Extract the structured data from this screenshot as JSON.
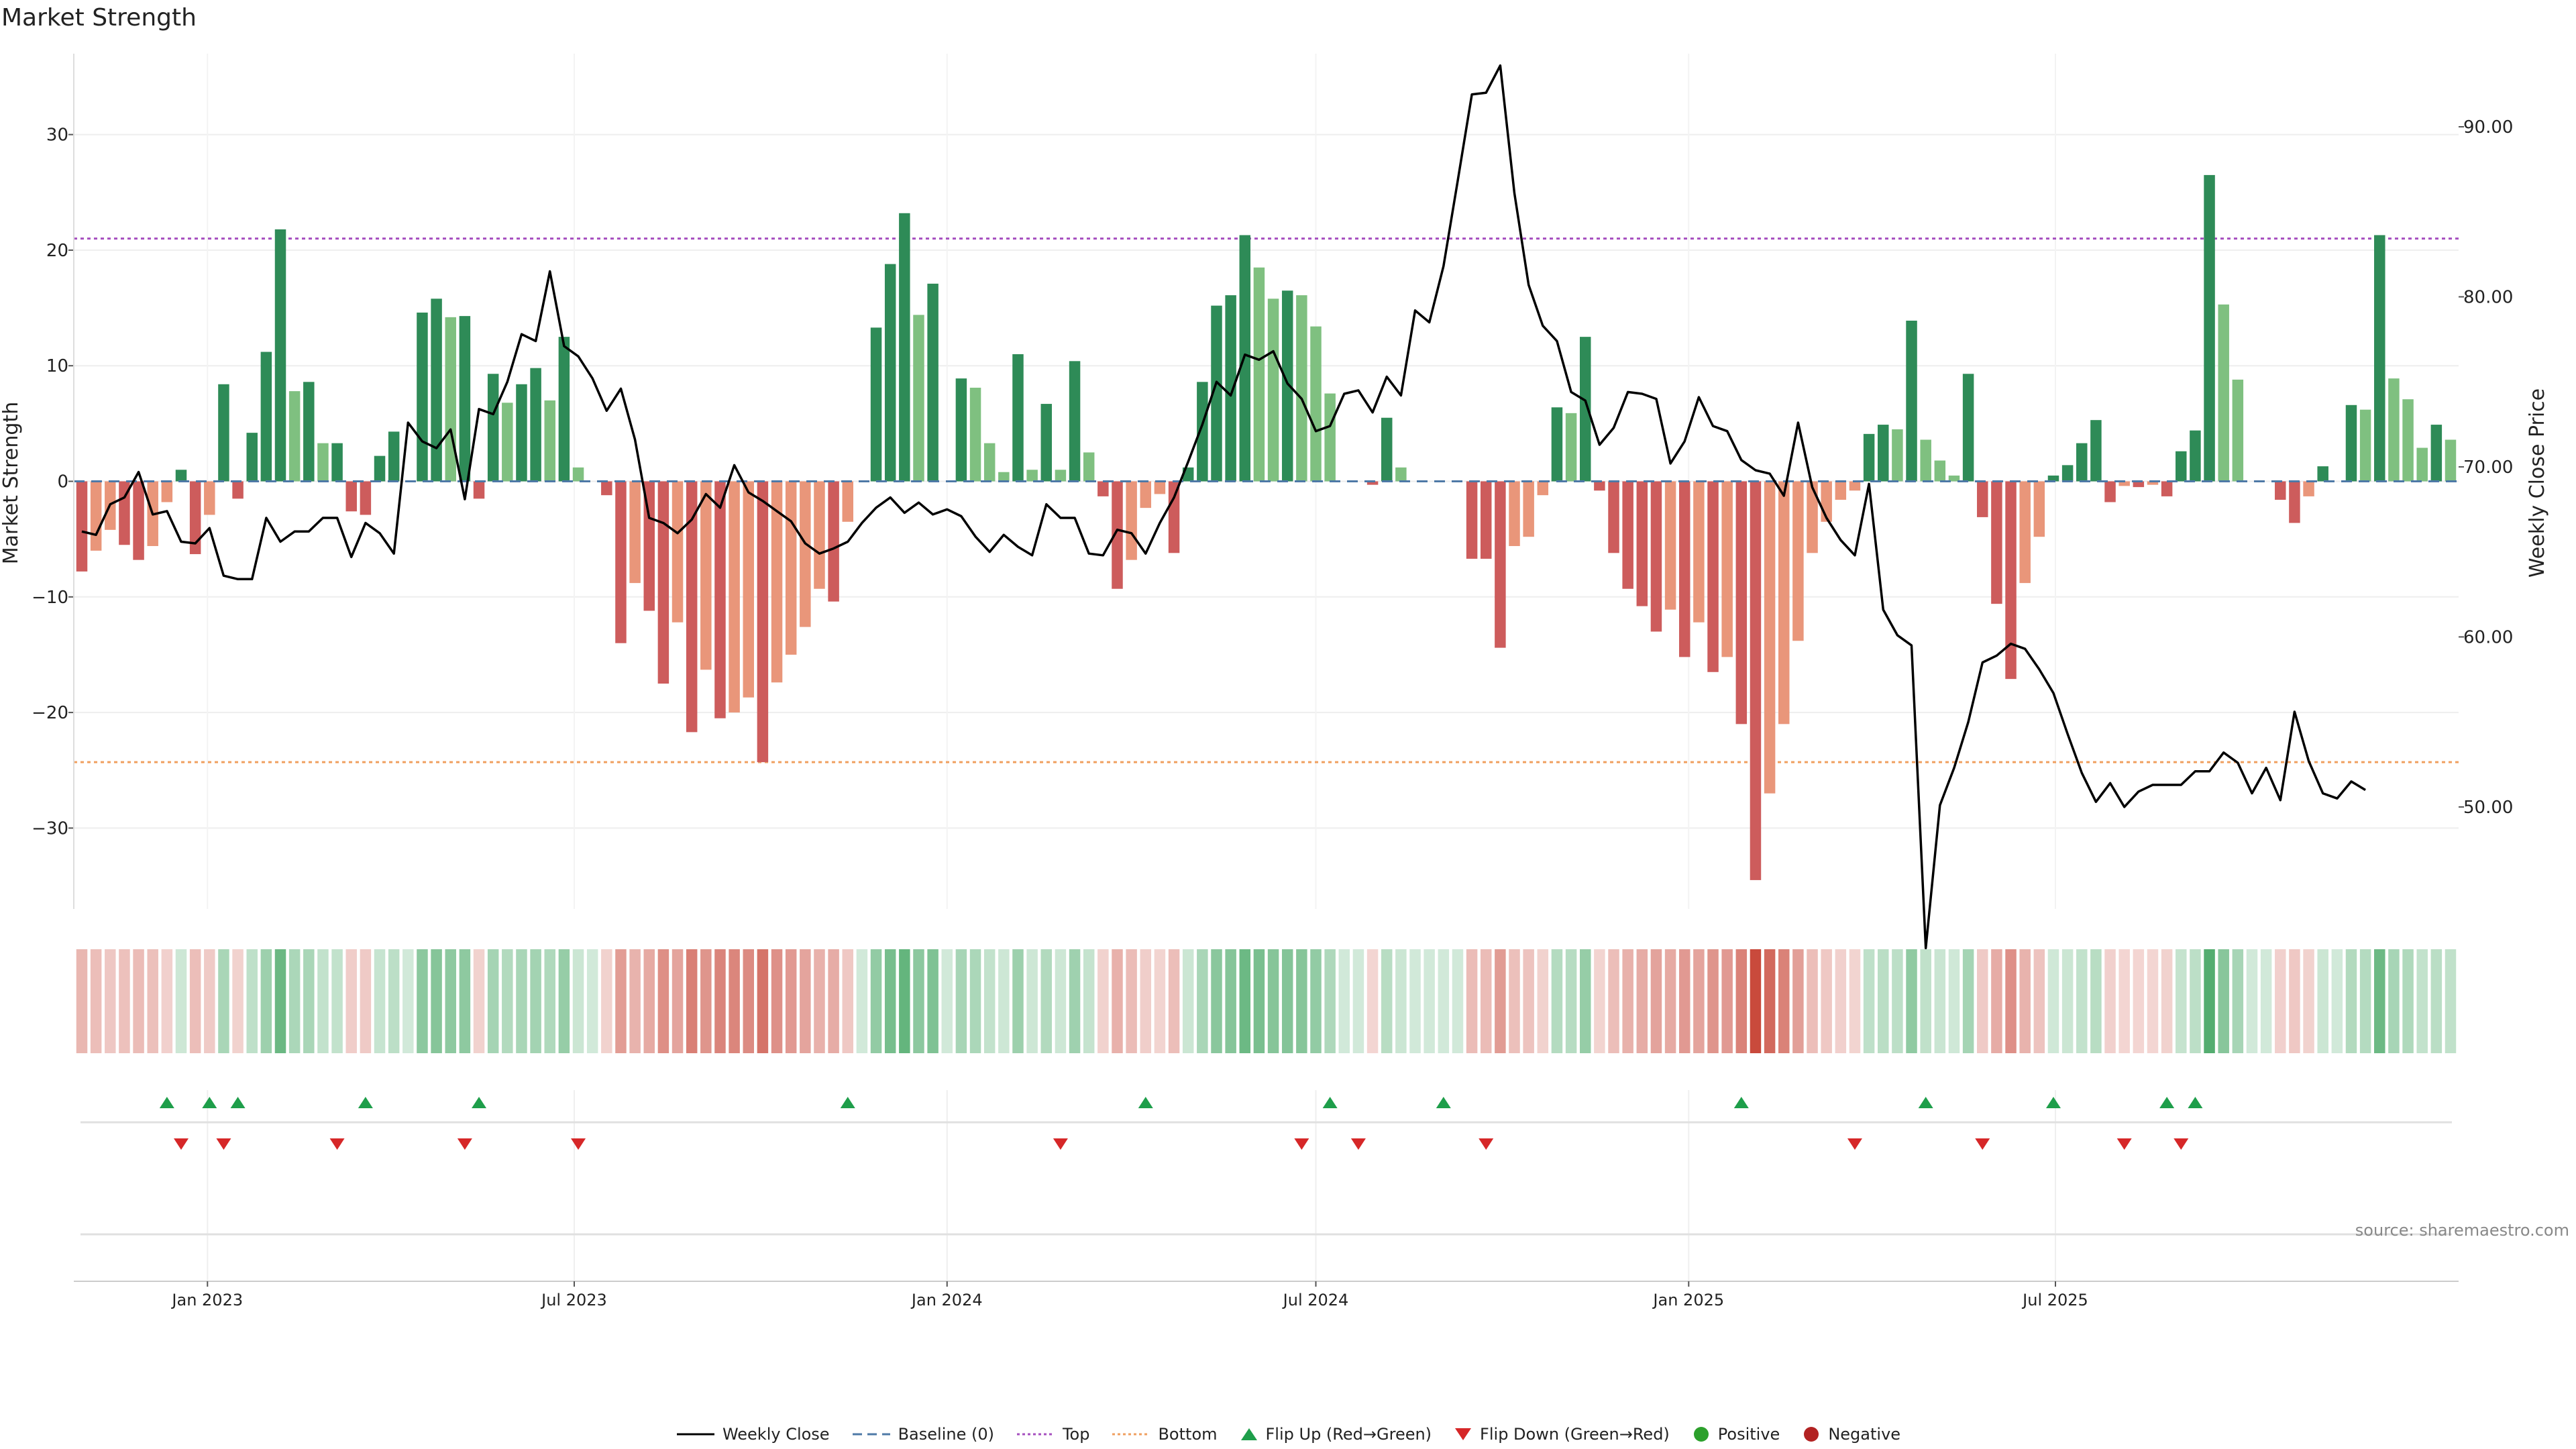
{
  "chart_data": {
    "type": "bar",
    "title": "Market Strength",
    "ylabel_left": "Market Strength",
    "ylabel_right": "Weekly Close Price",
    "ylim_left": [
      -37,
      37
    ],
    "ylim_right": [
      44.0,
      94.3
    ],
    "yticks_left": [
      30,
      20,
      10,
      0,
      -10,
      -20,
      -30
    ],
    "yticks_left_labels": [
      "30",
      "20",
      "10",
      "0",
      "−10",
      "−20",
      "−30"
    ],
    "yticks_right": [
      90,
      80,
      70,
      60,
      50
    ],
    "yticks_right_labels": [
      "90.00",
      "80.00",
      "70.00",
      "60.00",
      "50.00"
    ],
    "x_start": "2022-10-31",
    "x_ticks": [
      {
        "date": "2023-01-01",
        "label": "Jan 2023"
      },
      {
        "date": "2023-07-01",
        "label": "Jul 2023"
      },
      {
        "date": "2024-01-01",
        "label": "Jan 2024"
      },
      {
        "date": "2024-07-01",
        "label": "Jul 2024"
      },
      {
        "date": "2025-01-01",
        "label": "Jan 2025"
      },
      {
        "date": "2025-07-01",
        "label": "Jul 2025"
      }
    ],
    "top_line": 21,
    "bottom_line": -24.3,
    "strength": [
      -7.8,
      -6,
      -4.2,
      -5.5,
      -6.8,
      -5.6,
      -1.8,
      1,
      -6.3,
      -2.9,
      8.4,
      -1.5,
      4.2,
      11.2,
      21.8,
      7.8,
      8.6,
      3.3,
      3.3,
      -2.6,
      -2.9,
      2.2,
      4.3,
      0,
      14.6,
      15.8,
      14.2,
      14.3,
      -1.5,
      9.3,
      6.8,
      8.4,
      9.8,
      7,
      12.5,
      1.2,
      0,
      -1.2,
      -14,
      -8.8,
      -11.2,
      -17.5,
      -12.2,
      -21.7,
      -16.3,
      -20.5,
      -20,
      -18.7,
      -24.3,
      -17.4,
      -15,
      -12.6,
      -9.3,
      -10.4,
      -3.5,
      0,
      13.3,
      18.8,
      23.2,
      14.4,
      17.1,
      0,
      8.9,
      8.1,
      3.3,
      0.8,
      11,
      1,
      6.7,
      1,
      10.4,
      2.5,
      -1.3,
      -9.3,
      -6.8,
      -2.3,
      -1.1,
      -6.2,
      1.2,
      8.6,
      15.2,
      16.1,
      21.3,
      18.5,
      15.8,
      16.5,
      16.1,
      13.4,
      7.6,
      0,
      0,
      -0.3,
      5.5,
      1.2,
      0,
      0,
      0,
      0,
      -6.7,
      -6.7,
      -14.4,
      -5.6,
      -4.8,
      -1.2,
      6.4,
      5.9,
      12.5,
      -0.8,
      -6.2,
      -9.3,
      -10.8,
      -13,
      -11.1,
      -15.2,
      -12.2,
      -16.5,
      -15.2,
      -21,
      -34.5,
      -27,
      -21,
      -13.8,
      -6.2,
      -3.5,
      -1.6,
      -0.8,
      4.1,
      4.9,
      4.5,
      13.9,
      3.6,
      1.8,
      0.5,
      9.3,
      -3.1,
      -10.6,
      -17.1,
      -8.8,
      -4.8,
      0.5,
      1.4,
      3.3,
      5.3,
      -1.8,
      -0.4,
      -0.5,
      -0.3,
      -1.3,
      2.6,
      4.4,
      26.5,
      15.3,
      8.8,
      0,
      0,
      -1.6,
      -3.6,
      -1.3,
      1.3,
      0,
      6.6,
      6.2,
      21.3,
      8.9,
      7.1,
      2.9,
      4.9,
      3.6
    ],
    "weekly_close": [
      66.2,
      66.0,
      67.8,
      68.2,
      69.7,
      67.2,
      67.4,
      65.6,
      65.5,
      66.4,
      63.6,
      63.4,
      63.4,
      67.0,
      65.6,
      66.2,
      66.2,
      67.0,
      67.0,
      64.7,
      66.7,
      66.1,
      64.9,
      72.6,
      71.5,
      71.1,
      72.2,
      68.1,
      73.4,
      73.1,
      75.0,
      77.8,
      77.4,
      81.5,
      77.1,
      76.5,
      75.2,
      73.3,
      74.6,
      71.6,
      67.0,
      66.7,
      66.1,
      66.9,
      68.4,
      67.6,
      70.1,
      68.5,
      68.0,
      67.4,
      66.8,
      65.5,
      64.9,
      65.2,
      65.6,
      66.7,
      67.6,
      68.2,
      67.3,
      67.9,
      67.2,
      67.5,
      67.1,
      65.9,
      65.0,
      66.0,
      65.3,
      64.8,
      67.8,
      67.0,
      67.0,
      64.9,
      64.8,
      66.3,
      66.1,
      64.9,
      66.7,
      68.2,
      70.3,
      72.5,
      75.0,
      74.2,
      76.6,
      76.3,
      76.8,
      74.9,
      74.0,
      72.1,
      72.4,
      74.3,
      74.5,
      73.2,
      75.3,
      74.2,
      79.2,
      78.5,
      81.8,
      86.8,
      91.9,
      92.0,
      93.6,
      86.1,
      80.7,
      78.3,
      77.4,
      74.4,
      73.9,
      71.3,
      72.3,
      74.4,
      74.3,
      74.0,
      70.2,
      71.5,
      74.1,
      72.4,
      72.1,
      70.4,
      69.8,
      69.6,
      68.3,
      72.6,
      68.8,
      67.0,
      65.7,
      64.8,
      69.0,
      61.6,
      60.1,
      59.5,
      41.7,
      50.1,
      52.3,
      55.0,
      58.5,
      58.9,
      59.6,
      59.3,
      58.1,
      56.7,
      54.3,
      52.0,
      50.3,
      51.4,
      50.0,
      50.9,
      51.3,
      51.3,
      51.3,
      52.1,
      52.1,
      53.2,
      52.6,
      50.8,
      52.3,
      50.4,
      55.6,
      52.7,
      50.8,
      50.5,
      51.5,
      51.0
    ],
    "flip_up_indices": [
      6,
      9,
      11,
      20,
      28,
      54,
      75,
      88,
      96,
      117,
      130,
      139,
      147,
      149
    ],
    "flip_down_indices": [
      7,
      10,
      18,
      27,
      35,
      69,
      86,
      90,
      99,
      125,
      134,
      144,
      148
    ],
    "series": [
      {
        "name": "Weekly Close",
        "color": "#000000"
      },
      {
        "name": "Baseline (0)",
        "color": "#4e79a7"
      },
      {
        "name": "Top",
        "color": "#a64fbf"
      },
      {
        "name": "Bottom",
        "color": "#f0a060"
      },
      {
        "name": "Flip Up (Red→Green)",
        "color": "#1e9e4a"
      },
      {
        "name": "Flip Down (Green→Red)",
        "color": "#d62728"
      },
      {
        "name": "Positive",
        "color": "#2ca02c"
      },
      {
        "name": "Negative",
        "color": "#b22222"
      }
    ],
    "colors": {
      "pos_dark": "#2e8b57",
      "pos_light": "#7fc080",
      "neg_dark": "#cd5c5c",
      "neg_light": "#e9967a",
      "heat_pos": "#2e9b50",
      "heat_neg": "#c94a3c"
    },
    "source": "source: sharemaestro.com"
  }
}
